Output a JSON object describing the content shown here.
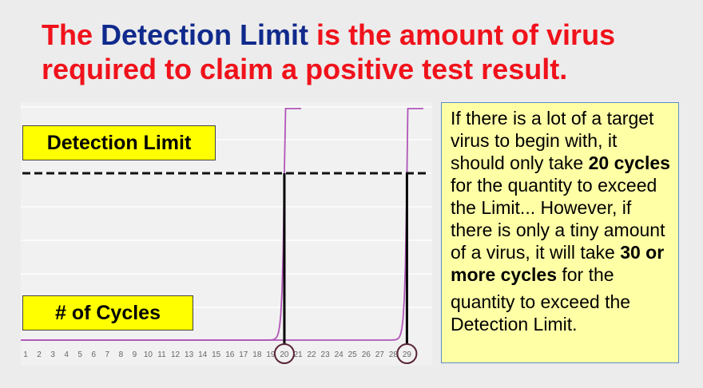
{
  "title": {
    "part1": "The ",
    "part2": "Detection Limit",
    "part3": " is the amount of virus required to claim a positive test result."
  },
  "labels": {
    "detection_limit": "Detection Limit",
    "cycles": "# of Cycles"
  },
  "callout": {
    "t1": "If there is a lot of a target virus to begin with, it should only take ",
    "b1": "20 cycles",
    "t2": " for the quantity to exceed the Limit... However, if there is only a tiny amount of a virus, it will take ",
    "b2": "30 or more cycles",
    "t3": " for the",
    "t4": "quantity to exceed the Detection Limit."
  },
  "colors": {
    "title_red": "#f0121b",
    "title_blue": "#102a8c",
    "label_yellow": "#ffff00",
    "callout_bg": "#ffffa6",
    "curve": "#b056b8"
  },
  "chart_data": {
    "type": "line",
    "x_ticks": [
      "1",
      "2",
      "3",
      "4",
      "5",
      "6",
      "7",
      "8",
      "9",
      "10",
      "11",
      "12",
      "13",
      "14",
      "15",
      "16",
      "17",
      "18",
      "19",
      "20",
      "21",
      "22",
      "23",
      "24",
      "25",
      "26",
      "27",
      "28",
      "29"
    ],
    "circled_cycles": [
      "20",
      "29"
    ],
    "xlim": [
      1,
      29
    ]
  }
}
